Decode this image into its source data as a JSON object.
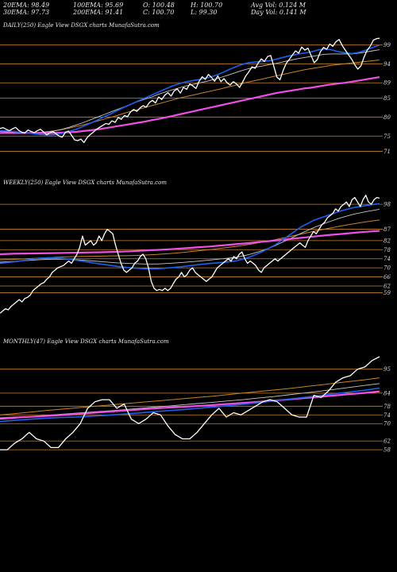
{
  "header": {
    "row1": [
      "20EMA: 98.49",
      "100EMA: 95.69",
      "O: 100.48",
      "H: 100.70",
      "Avg Vol: 0.124  M"
    ],
    "row2": [
      "30EMA: 97.73",
      "200EMA: 91.41",
      "C: 100.70",
      "L: 99.30",
      "Day Vol: 0.141  M"
    ]
  },
  "colors": {
    "background": "#000000",
    "price": "#ffffff",
    "ema_fast": "#1e5ff0",
    "ema_mid": "#c7c7c7",
    "ema_slow": "#c8832a",
    "ema_long": "#ee4fe6",
    "level_line": "#c9822e"
  },
  "chart_data": [
    {
      "type": "line",
      "title": "DAILY(250) Eagle   View  DSGX  charts MunafaSutra.com",
      "y_ticks": [
        "99",
        "94",
        "89",
        "85",
        "80",
        "75",
        "71"
      ],
      "levels": [
        99,
        94,
        89,
        85,
        80,
        75,
        71
      ],
      "ylim": [
        69,
        102
      ],
      "series": [
        {
          "role": "price",
          "values": [
            77,
            77.2,
            76.8,
            76.4,
            76.9,
            77.3,
            76.5,
            76,
            75.8,
            76.6,
            76.2,
            75.9,
            76.4,
            76.8,
            76.1,
            75.3,
            75.8,
            76.2,
            75.6,
            75,
            74.7,
            76,
            76.3,
            75.2,
            74,
            73.8,
            74.2,
            73.3,
            74.6,
            75.4,
            76,
            76.8,
            77.3,
            77.8,
            78.3,
            78.1,
            79,
            78.6,
            79.9,
            79.4,
            80.4,
            80.1,
            81.4,
            82,
            81.5,
            82.4,
            83,
            82.6,
            83.8,
            84.4,
            83.7,
            85.3,
            84.6,
            85.8,
            86.4,
            85.5,
            86.9,
            87.4,
            86.3,
            87.8,
            87.3,
            88.7,
            88.2,
            87.5,
            89.4,
            90.6,
            89.9,
            91.2,
            90.4,
            89.4,
            90.8,
            89.3,
            90.1,
            89,
            88.4,
            89.3,
            88.7,
            87.8,
            89.2,
            90.8,
            91.9,
            93.2,
            92.8,
            94.2,
            95.3,
            94.6,
            95.9,
            96.2,
            93.4,
            90.5,
            89.8,
            92.2,
            94.1,
            95.2,
            96.3,
            97.4,
            96.8,
            98.4,
            97.6,
            98.1,
            96.2,
            94.3,
            95.1,
            97.2,
            98.3,
            97.8,
            99.2,
            98.6,
            99.8,
            100.4,
            98.8,
            97.6,
            96.4,
            95.3,
            93.8,
            92.6,
            93.4,
            95.7,
            97.5,
            98.6,
            100.2,
            100.6,
            100.7
          ]
        },
        {
          "role": "ema_fast",
          "values": [
            76.4,
            76.4,
            76.2,
            76,
            75.8,
            75.6,
            75.4,
            75.3,
            75.4,
            75.7,
            76.2,
            76.8,
            77.5,
            78.3,
            79.1,
            80,
            80.8,
            81.7,
            82.6,
            83.4,
            84.2,
            85,
            85.8,
            86.6,
            87.4,
            88.2,
            88.8,
            89.3,
            89.6,
            89.9,
            90.3,
            90.8,
            91.5,
            92.3,
            93.1,
            93.8,
            94.3,
            94.5,
            94.6,
            94.8,
            95.2,
            95.7,
            96.1,
            96.5,
            96.8,
            97.1,
            97.6,
            97.9,
            97.7,
            97.2,
            96.9,
            96.7,
            97,
            97.6,
            98.3,
            98.9
          ]
        },
        {
          "role": "ema_mid",
          "values": [
            76.2,
            76.1,
            76,
            75.9,
            75.8,
            75.8,
            75.9,
            76.1,
            76.4,
            76.8,
            77.3,
            77.9,
            78.5,
            79.2,
            79.9,
            80.6,
            81.3,
            82,
            82.7,
            83.4,
            84.1,
            84.7,
            85.3,
            86,
            86.6,
            87.2,
            87.7,
            88.2,
            88.6,
            89,
            89.4,
            89.9,
            90.4,
            91,
            91.6,
            92.2,
            92.7,
            93.1,
            93.4,
            93.8,
            94.1,
            94.5,
            94.9,
            95.3,
            95.6,
            95.9,
            96.2,
            96.5,
            96.6,
            96.6,
            96.6,
            96.6,
            96.8,
            97.1,
            97.4,
            97.7
          ]
        },
        {
          "role": "ema_slow",
          "values": [
            75.8,
            75.8,
            75.8,
            75.8,
            75.8,
            75.9,
            76,
            76.2,
            76.4,
            76.7,
            77.1,
            77.5,
            77.9,
            78.4,
            78.9,
            79.4,
            79.9,
            80.4,
            81,
            81.5,
            82,
            82.5,
            83,
            83.5,
            84,
            84.5,
            85,
            85.4,
            85.8,
            86.2,
            86.6,
            87,
            87.4,
            87.9,
            88.3,
            88.8,
            89.2,
            89.6,
            90,
            90.4,
            90.8,
            91.2,
            91.6,
            92,
            92.4,
            92.7,
            93,
            93.3,
            93.6,
            93.8,
            94,
            94.2,
            94.4,
            94.6,
            94.8,
            95
          ]
        },
        {
          "role": "ema_long",
          "values": [
            75.8,
            75.8,
            75.8,
            75.8,
            75.8,
            75.8,
            75.8,
            75.8,
            75.8,
            75.9,
            76,
            76.1,
            76.3,
            76.5,
            76.7,
            77,
            77.3,
            77.6,
            77.9,
            78.2,
            78.5,
            78.8,
            79.2,
            79.5,
            79.9,
            80.3,
            80.7,
            81.1,
            81.5,
            81.9,
            82.3,
            82.7,
            83.1,
            83.5,
            83.9,
            84.3,
            84.7,
            85.1,
            85.5,
            85.9,
            86.3,
            86.6,
            86.9,
            87.2,
            87.5,
            87.7,
            88,
            88.3,
            88.6,
            88.8,
            89,
            89.3,
            89.6,
            89.9,
            90.2,
            90.5
          ]
        }
      ]
    },
    {
      "type": "line",
      "title": "WEEKLY(250) Eagle   View  DSGX  charts MunafaSutra.com",
      "y_ticks": [
        "98",
        "87",
        "82",
        "78",
        "74",
        "70",
        "66",
        "62",
        "59"
      ],
      "levels": [
        98,
        87,
        82,
        78,
        74,
        70,
        66,
        62,
        59
      ],
      "ylim": [
        48,
        104
      ],
      "series": [
        {
          "role": "price",
          "values": [
            50,
            51,
            52,
            51.5,
            53,
            54,
            55,
            56,
            55,
            56.5,
            57,
            58,
            60,
            61,
            62,
            63,
            63.5,
            65,
            66,
            68,
            69,
            70,
            70.5,
            71,
            72,
            73,
            72,
            74,
            76,
            79,
            84,
            80,
            81,
            82,
            80,
            81,
            84,
            82,
            85,
            87,
            86,
            85,
            80,
            76,
            72,
            69,
            68,
            69,
            70,
            72,
            73,
            75,
            76,
            74,
            70,
            64,
            61,
            60,
            60.5,
            60,
            61,
            60,
            61,
            63,
            65,
            66,
            68,
            66,
            67,
            69,
            70,
            68,
            67,
            66,
            65,
            64,
            65,
            66,
            68,
            70,
            71,
            72,
            73,
            74,
            73,
            75,
            74,
            76,
            77,
            74,
            72,
            73,
            72,
            71,
            69,
            68,
            70,
            71,
            72,
            73,
            74,
            73,
            74,
            75,
            76,
            77,
            78,
            79,
            80,
            81,
            80,
            79,
            82,
            84,
            86,
            85,
            87,
            89,
            90,
            92,
            93,
            94,
            96,
            95,
            97,
            98,
            99,
            97,
            100,
            101,
            99,
            97,
            100,
            102,
            99,
            98,
            100,
            101,
            100.7
          ]
        },
        {
          "role": "ema_fast",
          "values": [
            72,
            72.6,
            73.4,
            74.2,
            74.5,
            74,
            73.2,
            72.3,
            71.4,
            70.6,
            70,
            69.6,
            69.6,
            70,
            70.6,
            71.3,
            71.9,
            72.4,
            73,
            74.6,
            77,
            80,
            84,
            88,
            91,
            93,
            95,
            96.5,
            97.5,
            98.3
          ]
        },
        {
          "role": "ema_mid",
          "values": [
            72.5,
            72.8,
            73.2,
            73.6,
            73.8,
            73.8,
            73.5,
            73.1,
            72.6,
            72.2,
            71.9,
            71.7,
            71.7,
            72,
            72.4,
            72.9,
            73.4,
            74,
            74.6,
            75.8,
            77.5,
            79.7,
            82.4,
            85.2,
            87.8,
            90,
            92,
            93.6,
            94.8,
            95.8
          ]
        },
        {
          "role": "ema_slow",
          "values": [
            73.5,
            73.7,
            74,
            74.3,
            74.6,
            74.8,
            75,
            75.1,
            75.2,
            75.3,
            75.4,
            75.6,
            75.9,
            76.3,
            76.8,
            77.4,
            78,
            78.7,
            79.4,
            80.3,
            81.3,
            82.4,
            83.6,
            84.9,
            86.1,
            87.3,
            88.4,
            89.4,
            90.3,
            91.1
          ]
        },
        {
          "role": "ema_long",
          "values": [
            76,
            76.2,
            76.3,
            76.4,
            76.5,
            76.6,
            76.7,
            76.8,
            76.9,
            77.1,
            77.3,
            77.6,
            77.9,
            78.2,
            78.6,
            79,
            79.4,
            79.9,
            80.4,
            80.9,
            81.5,
            82,
            82.6,
            83.2,
            83.8,
            84.4,
            84.9,
            85.4,
            85.9,
            86.3
          ]
        }
      ]
    },
    {
      "type": "line",
      "title": "MONTHLY(47) Eagle   View  DSGX  charts MunafaSutra.com",
      "y_ticks": [
        "95",
        "84",
        "78",
        "74",
        "70",
        "62",
        "58"
      ],
      "levels": [
        95,
        84,
        78,
        74,
        70,
        62,
        58
      ],
      "ylim": [
        42,
        104
      ],
      "series": [
        {
          "role": "price",
          "values": [
            58,
            58,
            61,
            63,
            66,
            63,
            62,
            59,
            59,
            63,
            66,
            70,
            77,
            80,
            81,
            81,
            77,
            79,
            72,
            70,
            72,
            75,
            74,
            69,
            65,
            63,
            63,
            66,
            70,
            74,
            77,
            73,
            75,
            74,
            76,
            78,
            80,
            81,
            80,
            77,
            74,
            73,
            73,
            83,
            82,
            85,
            89,
            91,
            92,
            95,
            96,
            99,
            100.7
          ]
        },
        {
          "role": "ema_fast",
          "values": [
            71,
            71.5,
            72,
            72.5,
            72.8,
            73,
            73.4,
            73.8,
            74.3,
            74.8,
            75.4,
            75.9,
            76.4,
            77,
            77.6,
            78.2,
            78.9,
            79.6,
            80.4,
            81.2,
            82,
            82.8,
            83.7,
            84.5,
            85.3,
            86.3
          ]
        },
        {
          "role": "ema_mid",
          "values": [
            72,
            72.5,
            73.2,
            73.8,
            74.3,
            74.8,
            75.3,
            75.8,
            76.3,
            76.9,
            77.5,
            78,
            78.6,
            79.2,
            79.8,
            80.4,
            81,
            81.7,
            82.4,
            83.2,
            84,
            84.8,
            85.7,
            86.6,
            87.5,
            88.4
          ]
        },
        {
          "role": "ema_slow",
          "values": [
            74,
            74.6,
            75.3,
            76,
            76.6,
            77.2,
            77.8,
            78.4,
            79,
            79.6,
            80.2,
            80.8,
            81.4,
            82,
            82.6,
            83.3,
            84,
            84.7,
            85.4,
            86.1,
            86.9,
            87.7,
            88.5,
            89.3,
            90.1,
            91
          ]
        },
        {
          "role": "ema_long",
          "values": [
            72.5,
            72.8,
            73.1,
            73.5,
            73.9,
            74.4,
            74.9,
            75.4,
            75.9,
            76.4,
            76.9,
            77.3,
            77.7,
            78.1,
            78.5,
            79,
            79.5,
            80,
            80.5,
            81.1,
            81.7,
            82.3,
            82.9,
            83.5,
            84.1,
            84.8
          ]
        }
      ]
    }
  ]
}
